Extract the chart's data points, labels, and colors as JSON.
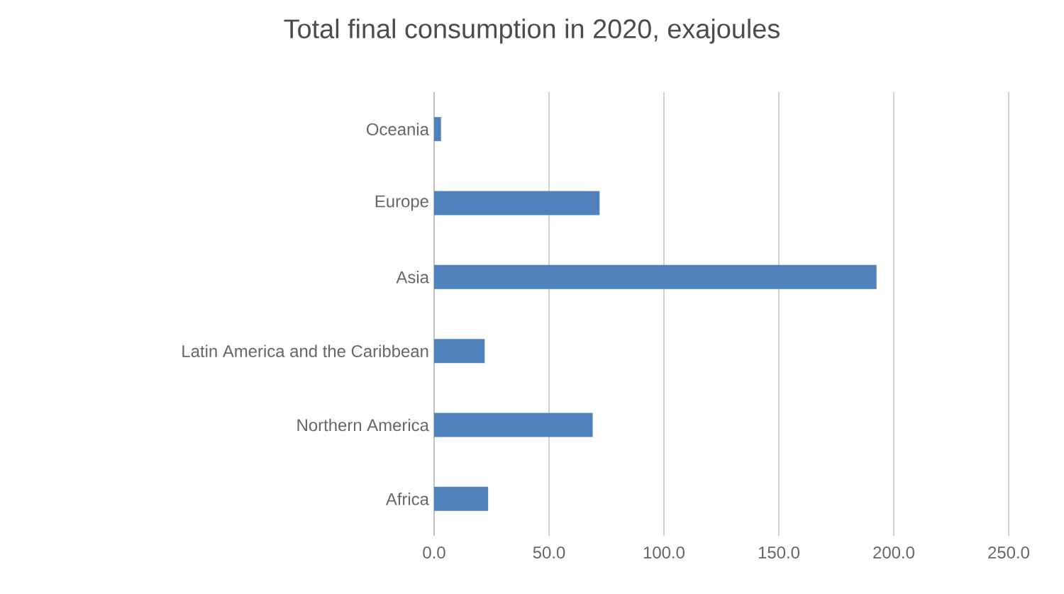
{
  "chart_data": {
    "type": "bar",
    "orientation": "horizontal",
    "title": "Total final consumption in 2020, exajoules",
    "categories": [
      "Oceania",
      "Europe",
      "Asia",
      "Latin America and the Caribbean",
      "Northern America",
      "Africa"
    ],
    "values": [
      3,
      72,
      192.5,
      22,
      69,
      23.5
    ],
    "color": "#4f81bd",
    "xlim": [
      0,
      250
    ],
    "xticks": [
      {
        "value": 0,
        "label": "0.0"
      },
      {
        "value": 50,
        "label": "50.0"
      },
      {
        "value": 100,
        "label": "100.0"
      },
      {
        "value": 150,
        "label": "150.0"
      },
      {
        "value": 200,
        "label": "200.0"
      },
      {
        "value": 250,
        "label": "250.0"
      }
    ],
    "grid": "x"
  }
}
